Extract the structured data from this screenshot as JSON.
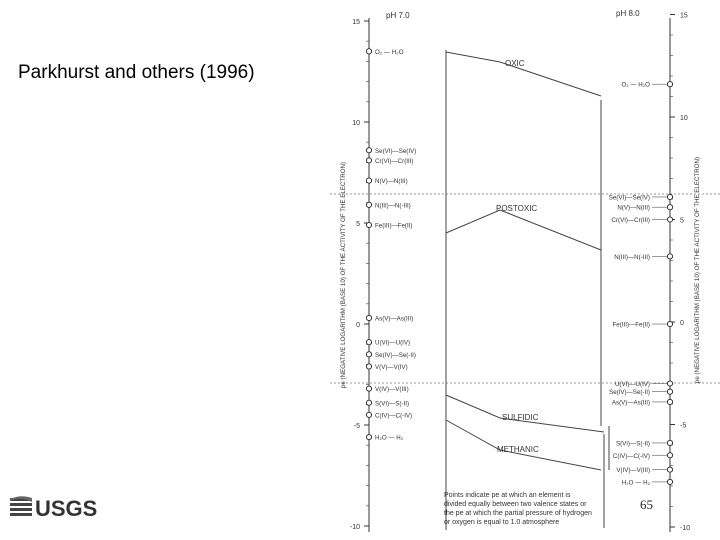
{
  "slide": {
    "credit": "Parkhurst and others (1996)",
    "page_number": "65",
    "logo_text": "USGS"
  },
  "diagram": {
    "left_header": "pH 7.0",
    "right_header": "pH 8.0",
    "left_axis_label": "pe (NEGATIVE LOGARITHM (BASE 10) OF THE ACTIVITY OF THE ELECTRON)",
    "right_axis_label": "pe (NEGATIVE LOGARITHM (BASE 10) OF THE ACTIVITY OF THE ELECTRON)",
    "axis_ticks": [
      "15",
      "10",
      "5",
      "0",
      "-5",
      "-10"
    ],
    "zones": [
      "OXIC",
      "POSTOXIC",
      "SULFIDIC",
      "METHANIC"
    ],
    "left_couples": [
      {
        "pe": 13.5,
        "label": "O₂ — H₂O"
      },
      {
        "pe": 8.6,
        "label": "Se(VI)—Se(IV)"
      },
      {
        "pe": 8.1,
        "label": "Cr(VI)—Cr(III)"
      },
      {
        "pe": 7.1,
        "label": "N(V)—N(III)"
      },
      {
        "pe": 5.9,
        "label": "N(III)—N(-III)"
      },
      {
        "pe": 4.9,
        "label": "Fe(III)—Fe(II)"
      },
      {
        "pe": 0.3,
        "label": "As(V)—As(III)"
      },
      {
        "pe": -0.9,
        "label": "U(VI)—U(IV)"
      },
      {
        "pe": -1.5,
        "label": "Se(IV)—Se(-II)"
      },
      {
        "pe": -2.1,
        "label": "V(V)—V(IV)"
      },
      {
        "pe": -3.2,
        "label": "V(IV)—V(III)"
      },
      {
        "pe": -3.9,
        "label": "S(VI)—S(-II)"
      },
      {
        "pe": -4.5,
        "label": "C(IV)—C(-IV)"
      },
      {
        "pe": -5.6,
        "label": "H₂O — H₂"
      }
    ],
    "right_couples": [
      {
        "pe": 11.6,
        "label": "O₂ — H₂O"
      },
      {
        "pe": 6.1,
        "label": "Se(VI)—Se(IV)"
      },
      {
        "pe": 5.6,
        "label": "N(V)—N(III)"
      },
      {
        "pe": 5.0,
        "label": "Cr(VI)—Cr(III)"
      },
      {
        "pe": 3.2,
        "label": "N(III)—N(-III)"
      },
      {
        "pe": -0.1,
        "label": "Fe(III)—Fe(II)"
      },
      {
        "pe": -3.0,
        "label": "U(VI)—U(IV)"
      },
      {
        "pe": -3.4,
        "label": "Se(IV)—Se(-II)"
      },
      {
        "pe": -3.9,
        "label": "As(V)—As(III)"
      },
      {
        "pe": -5.9,
        "label": "S(VI)—S(-II)"
      },
      {
        "pe": -6.5,
        "label": "C(IV)—C(-IV)"
      },
      {
        "pe": -7.2,
        "label": "V(IV)—V(III)"
      },
      {
        "pe": -7.8,
        "label": "H₂O — H₂"
      }
    ],
    "note_lines": [
      "Points indicate pe at which an element is",
      "divided equally between two valence states or",
      "the pe at which the partial pressure of hydrogen",
      "or oxygen is equal to 1.0 atmosphere"
    ]
  }
}
